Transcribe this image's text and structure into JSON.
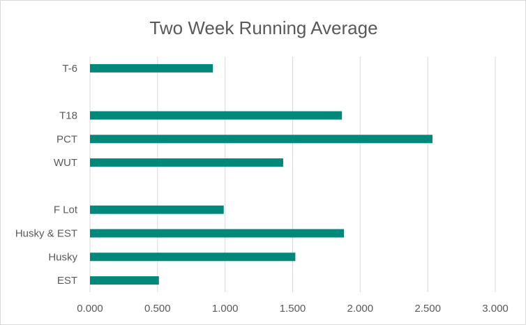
{
  "chart_data": {
    "type": "bar",
    "orientation": "horizontal",
    "title": "Two Week Running Average",
    "xlabel": "",
    "ylabel": "",
    "categories": [
      "T-6",
      "",
      "T18",
      "PCT",
      "WUT",
      "",
      "F Lot",
      "Husky & EST",
      "Husky",
      "EST"
    ],
    "values": [
      0.91,
      null,
      1.865,
      2.535,
      1.43,
      null,
      0.99,
      1.88,
      1.52,
      0.51
    ],
    "xlim": [
      0,
      3
    ],
    "xticks": [
      "0.000",
      "0.500",
      "1.000",
      "1.500",
      "2.000",
      "2.500",
      "3.000"
    ],
    "grid": true,
    "legend": "none",
    "bar_color": "#00897B"
  }
}
